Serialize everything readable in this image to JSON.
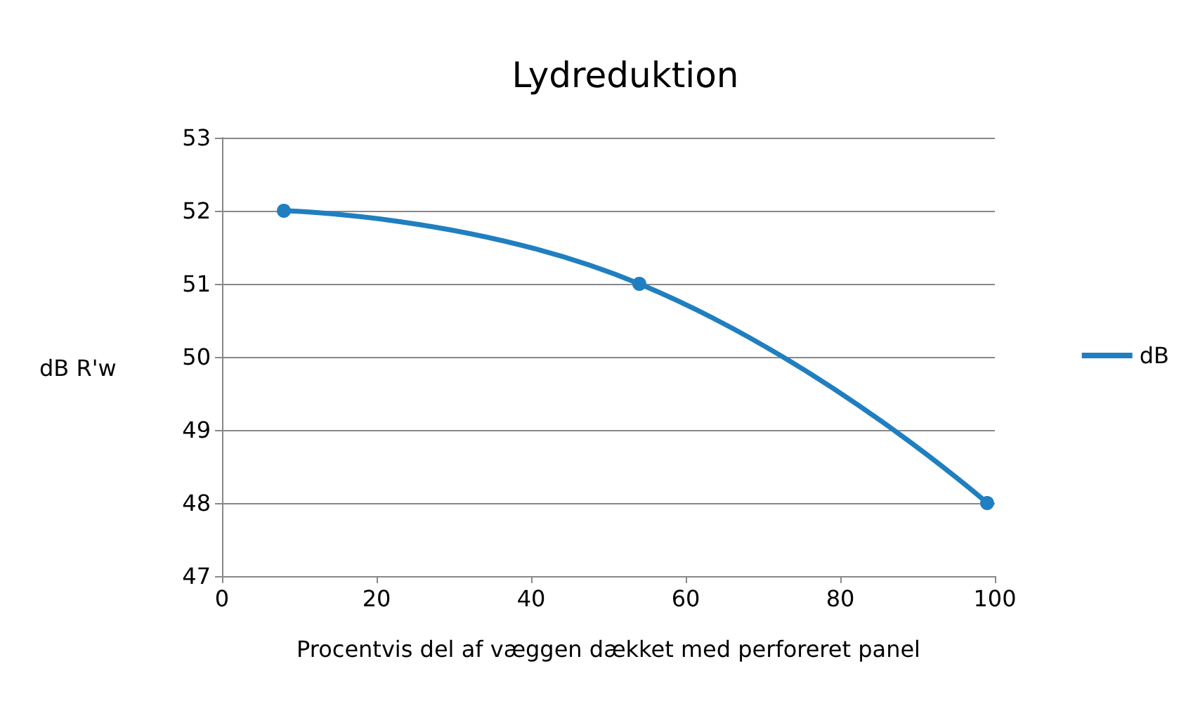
{
  "chart_data": {
    "type": "line",
    "title": "Lydreduktion",
    "xlabel": "Procentvis del af væggen dækket med perforeret panel",
    "ylabel": "dB R'w",
    "x": [
      8,
      54,
      99
    ],
    "series": [
      {
        "name": "dB",
        "color": "#1f7fc0",
        "values": [
          52,
          51,
          48
        ]
      }
    ],
    "xlim": [
      0,
      100
    ],
    "xticks": [
      0,
      20,
      40,
      60,
      80,
      100
    ],
    "ylim": [
      47,
      53
    ],
    "yticks": [
      47,
      48,
      49,
      50,
      51,
      52,
      53
    ],
    "grid": "y",
    "legend": "right",
    "marker": "circle"
  }
}
